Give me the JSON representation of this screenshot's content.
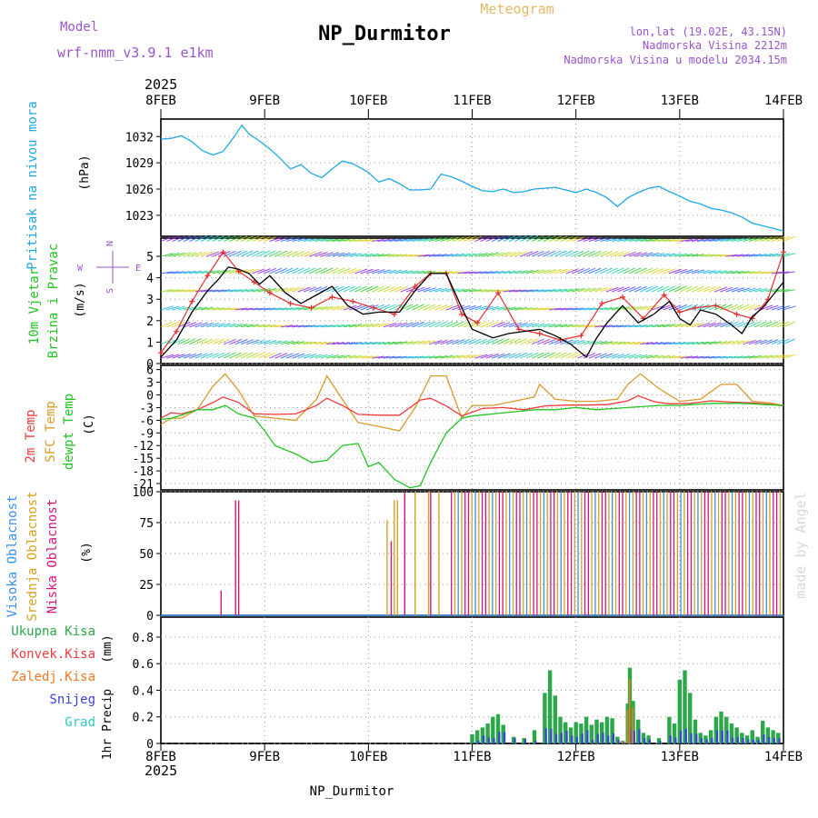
{
  "header": {
    "model_label": "Model",
    "model_name": "wrf-nmm_v3.9.1 e1km",
    "title": "NP_Durmitor",
    "subtitle": "Meteogram",
    "coords": "lon,lat (19.02E, 43.15N)",
    "elevation": "Nadmorska Visina 2212m",
    "model_elevation": "Nadmorska Visina u modelu 2034.15m",
    "year": "2025",
    "footer_station": "NP_Durmitor",
    "credit": "made by Angel"
  },
  "colors": {
    "pressure": "#1ea8e6",
    "wind_speed": "#000000",
    "wind_gust": "#e03030",
    "temp_2m": "#ee3a3a",
    "temp_sfc": "#d99a2b",
    "dewpoint": "#22c422",
    "cloud_high": "#3a8fe8",
    "cloud_mid": "#d8a020",
    "cloud_low": "#d4147a",
    "precip_total": "#2aa84a",
    "precip_conv": "#e84040",
    "precip_frz": "#f07a20",
    "precip_snow": "#3a40e0",
    "precip_grad": "#30c8c8"
  },
  "chart_data": [
    {
      "type": "line",
      "panel": "pressure",
      "ylabel": "Pritisak na nivou mora",
      "unit": "(hPa)",
      "x_ticks": [
        "8FEB",
        "9FEB",
        "10FEB",
        "11FEB",
        "12FEB",
        "13FEB",
        "14FEB"
      ],
      "ylim": [
        1020.6,
        1034.0
      ],
      "yticks": [
        1023,
        1026,
        1029,
        1032
      ],
      "series": [
        {
          "x": [
            0,
            0.1,
            0.2,
            0.3,
            0.4,
            0.5,
            0.6,
            0.72,
            0.78,
            0.85,
            0.95,
            1.05,
            1.15,
            1.25,
            1.35,
            1.45,
            1.55,
            1.65,
            1.75,
            1.85,
            2.0,
            2.1,
            2.2,
            2.3,
            2.4,
            2.5,
            2.6,
            2.7,
            2.8,
            2.9,
            3.0,
            3.1,
            3.2,
            3.3,
            3.4,
            3.5,
            3.6,
            3.7,
            3.8,
            3.9,
            4.0,
            4.1,
            4.2,
            4.3,
            4.4,
            4.5,
            4.6,
            4.7,
            4.8,
            4.9,
            5.0,
            5.1,
            5.2,
            5.3,
            5.4,
            5.5,
            5.6,
            5.7,
            5.8,
            5.9,
            6.0
          ],
          "values": [
            1031.7,
            1031.8,
            1032.1,
            1031.4,
            1030.4,
            1029.9,
            1030.3,
            1032.2,
            1033.3,
            1032.3,
            1031.5,
            1030.6,
            1029.5,
            1028.3,
            1028.8,
            1027.8,
            1027.3,
            1028.3,
            1029.2,
            1028.9,
            1027.9,
            1026.8,
            1027.2,
            1026.6,
            1025.9,
            1025.9,
            1026.0,
            1027.7,
            1027.4,
            1026.9,
            1026.3,
            1025.8,
            1025.7,
            1026.0,
            1025.6,
            1025.7,
            1026.0,
            1026.1,
            1026.2,
            1025.9,
            1025.6,
            1026.0,
            1025.6,
            1025.0,
            1024.0,
            1025.0,
            1025.6,
            1026.1,
            1026.3,
            1025.7,
            1025.2,
            1024.6,
            1024.3,
            1023.8,
            1023.6,
            1023.3,
            1022.8,
            1022.1,
            1021.8,
            1021.5,
            1021.2
          ]
        }
      ]
    },
    {
      "type": "line",
      "panel": "wind",
      "ylabel": "10m Vjetar",
      "ylabel2": "Brzina i Pravac",
      "unit": "(m/s)",
      "compass": {
        "north": "N",
        "east": "E",
        "west": "W",
        "south": "S"
      },
      "ylim": [
        0,
        5.85
      ],
      "yticks": [
        0,
        1,
        2,
        3,
        4,
        5
      ],
      "series": [
        {
          "name": "speed",
          "x": [
            0,
            0.15,
            0.3,
            0.45,
            0.55,
            0.65,
            0.75,
            0.85,
            0.95,
            1.05,
            1.2,
            1.35,
            1.5,
            1.65,
            1.8,
            1.95,
            2.1,
            2.3,
            2.45,
            2.6,
            2.75,
            2.9,
            3.0,
            3.1,
            3.2,
            3.35,
            3.5,
            3.65,
            3.8,
            3.95,
            4.1,
            4.2,
            4.3,
            4.45,
            4.6,
            4.75,
            4.9,
            5.0,
            5.1,
            5.2,
            5.35,
            5.5,
            5.6,
            5.7,
            5.8,
            5.9,
            6.0
          ],
          "values": [
            0.3,
            1.1,
            2.4,
            3.4,
            3.9,
            4.5,
            4.4,
            4.2,
            3.7,
            4.1,
            3.3,
            2.8,
            3.2,
            3.6,
            2.7,
            2.3,
            2.4,
            2.4,
            3.4,
            4.2,
            4.2,
            2.6,
            1.6,
            1.4,
            1.2,
            1.4,
            1.5,
            1.6,
            1.3,
            0.9,
            0.3,
            1.2,
            1.9,
            2.7,
            1.9,
            2.3,
            2.9,
            2.1,
            1.8,
            2.5,
            2.3,
            1.8,
            1.4,
            2.2,
            2.6,
            3.2,
            3.8
          ]
        },
        {
          "name": "gust",
          "x": [
            0,
            0.15,
            0.3,
            0.45,
            0.6,
            0.75,
            0.9,
            1.05,
            1.25,
            1.45,
            1.65,
            1.85,
            2.05,
            2.25,
            2.45,
            2.6,
            2.75,
            2.9,
            3.05,
            3.25,
            3.45,
            3.65,
            3.85,
            4.05,
            4.25,
            4.45,
            4.65,
            4.85,
            5.0,
            5.15,
            5.35,
            5.55,
            5.7,
            5.85,
            6.0
          ],
          "values": [
            0.5,
            1.5,
            2.9,
            4.1,
            5.2,
            4.3,
            3.8,
            3.3,
            2.8,
            2.6,
            3.1,
            2.9,
            2.6,
            2.3,
            3.6,
            4.2,
            4.2,
            2.3,
            1.9,
            3.3,
            1.6,
            1.4,
            1.1,
            1.3,
            2.8,
            3.1,
            2.1,
            3.2,
            2.4,
            2.6,
            2.7,
            2.3,
            2.1,
            3.0,
            5.2
          ]
        }
      ]
    },
    {
      "type": "line",
      "panel": "temperature",
      "ylabels": [
        "2m Temp",
        "SFC Temp",
        "dewpt Temp"
      ],
      "unit": "(C)",
      "ylim": [
        -22.5,
        7.0
      ],
      "yticks": [
        -21,
        -18,
        -15,
        -12,
        -9,
        -6,
        -3,
        0,
        3,
        6
      ],
      "series": [
        {
          "name": "2m Temp",
          "x": [
            0,
            0.1,
            0.2,
            0.35,
            0.5,
            0.6,
            0.75,
            0.9,
            1.1,
            1.3,
            1.5,
            1.6,
            1.75,
            1.9,
            2.1,
            2.3,
            2.5,
            2.6,
            2.75,
            2.9,
            3.1,
            3.3,
            3.5,
            3.7,
            3.9,
            4.1,
            4.3,
            4.5,
            4.6,
            4.75,
            4.9,
            5.1,
            5.3,
            5.5,
            5.7,
            5.9,
            6.0
          ],
          "values": [
            -5.5,
            -4.2,
            -4.5,
            -3.5,
            -1.8,
            -0.5,
            -1.8,
            -4.5,
            -4.6,
            -4.5,
            -2.5,
            -0.8,
            -2.5,
            -4.6,
            -4.8,
            -4.8,
            -1.2,
            -0.8,
            -2.6,
            -5.0,
            -3.2,
            -3.0,
            -3.5,
            -2.6,
            -2.4,
            -2.4,
            -2.3,
            -1.4,
            -0.2,
            -1.6,
            -2.1,
            -2.0,
            -1.4,
            -1.7,
            -1.9,
            -2.3,
            -2.6
          ]
        },
        {
          "name": "SFC Temp",
          "x": [
            0,
            0.1,
            0.2,
            0.35,
            0.5,
            0.62,
            0.75,
            0.9,
            1.1,
            1.3,
            1.5,
            1.6,
            1.72,
            1.9,
            2.1,
            2.3,
            2.45,
            2.6,
            2.75,
            2.9,
            3.0,
            3.2,
            3.4,
            3.6,
            3.65,
            3.8,
            4.0,
            4.2,
            4.4,
            4.5,
            4.62,
            4.8,
            5.0,
            5.2,
            5.4,
            5.55,
            5.7,
            5.9,
            6.0
          ],
          "values": [
            -7.0,
            -5.5,
            -5.5,
            -3.5,
            2.0,
            5.0,
            1.0,
            -5.0,
            -5.5,
            -6.0,
            -1.0,
            4.5,
            0.0,
            -6.5,
            -7.5,
            -8.5,
            -3.0,
            4.5,
            4.5,
            -5.5,
            -2.5,
            -2.5,
            -1.5,
            -0.5,
            2.5,
            -1.0,
            -1.5,
            -1.5,
            -1.0,
            2.5,
            5.0,
            1.5,
            -1.5,
            -1.0,
            2.5,
            2.5,
            -1.5,
            -2.0,
            -2.5
          ]
        },
        {
          "name": "dewpt Temp",
          "x": [
            0,
            0.1,
            0.2,
            0.35,
            0.5,
            0.62,
            0.75,
            0.9,
            1.0,
            1.1,
            1.3,
            1.45,
            1.6,
            1.75,
            1.9,
            2.0,
            2.1,
            2.25,
            2.4,
            2.5,
            2.6,
            2.75,
            2.9,
            3.0,
            3.2,
            3.4,
            3.6,
            3.8,
            4.0,
            4.2,
            4.5,
            4.8,
            5.0,
            5.3,
            5.6,
            6.0
          ],
          "values": [
            -5.8,
            -5.5,
            -4.8,
            -3.5,
            -3.5,
            -2.5,
            -4.5,
            -5.5,
            -8.5,
            -12.0,
            -14.0,
            -16.0,
            -15.5,
            -12.0,
            -11.5,
            -17.0,
            -16.0,
            -20.0,
            -22.0,
            -21.5,
            -16.0,
            -9.0,
            -5.5,
            -5.0,
            -4.5,
            -4.0,
            -3.5,
            -3.5,
            -3.0,
            -3.5,
            -3.0,
            -2.5,
            -2.5,
            -2.0,
            -2.0,
            -2.5
          ]
        }
      ]
    },
    {
      "type": "bar",
      "panel": "clouds",
      "ylabels": [
        "Visoka Oblacnost",
        "Srednja Oblacnost",
        "Niska Oblacnost"
      ],
      "unit": "(%)",
      "ylim": [
        0,
        100
      ],
      "yticks": [
        0,
        25,
        50,
        75,
        100
      ],
      "low_spikes": [
        {
          "x": 0.58,
          "v": 20
        },
        {
          "x": 0.72,
          "v": 93
        },
        {
          "x": 0.75,
          "v": 93
        },
        {
          "x": 2.22,
          "v": 60
        },
        {
          "x": 2.35,
          "v": 100
        },
        {
          "x": 2.6,
          "v": 100
        }
      ],
      "mid_spikes": [
        {
          "x": 2.18,
          "v": 77
        },
        {
          "x": 2.25,
          "v": 93
        },
        {
          "x": 2.28,
          "v": 93
        },
        {
          "x": 2.45,
          "v": 100
        },
        {
          "x": 2.58,
          "v": 100
        },
        {
          "x": 2.68,
          "v": 100
        }
      ],
      "dense_from": 2.8,
      "dense_to": 6.0,
      "dense_value": 100
    },
    {
      "type": "bar",
      "panel": "precip",
      "legend": [
        "Ukupna Kisa",
        "Konvek.Kisa",
        "Zaledj.Kisa",
        "Snijeg",
        "Grad"
      ],
      "ylabel": "1hr Precip",
      "unit": "(mm)",
      "ylim": [
        0,
        0.95
      ],
      "yticks": [
        0,
        0.2,
        0.4,
        0.6,
        0.8
      ],
      "x": [
        3.0,
        3.05,
        3.1,
        3.15,
        3.2,
        3.25,
        3.3,
        3.4,
        3.5,
        3.6,
        3.7,
        3.75,
        3.8,
        3.85,
        3.9,
        3.95,
        4.0,
        4.05,
        4.1,
        4.15,
        4.2,
        4.25,
        4.3,
        4.35,
        4.4,
        4.45,
        4.5,
        4.52,
        4.55,
        4.6,
        4.65,
        4.7,
        4.8,
        4.9,
        4.95,
        5.0,
        5.05,
        5.1,
        5.15,
        5.2,
        5.25,
        5.3,
        5.35,
        5.4,
        5.45,
        5.5,
        5.55,
        5.6,
        5.65,
        5.7,
        5.75,
        5.8,
        5.85,
        5.9,
        5.95
      ],
      "values": [
        0.07,
        0.1,
        0.12,
        0.15,
        0.2,
        0.22,
        0.14,
        0.05,
        0.04,
        0.1,
        0.38,
        0.55,
        0.36,
        0.2,
        0.16,
        0.12,
        0.16,
        0.15,
        0.2,
        0.14,
        0.18,
        0.16,
        0.2,
        0.19,
        0.05,
        0.02,
        0.3,
        0.57,
        0.32,
        0.18,
        0.08,
        0.06,
        0.04,
        0.2,
        0.15,
        0.48,
        0.55,
        0.38,
        0.18,
        0.08,
        0.06,
        0.1,
        0.2,
        0.24,
        0.2,
        0.15,
        0.12,
        0.08,
        0.06,
        0.1,
        0.05,
        0.17,
        0.12,
        0.1,
        0.08
      ],
      "snow_frac": [
        0.1,
        0.2,
        0.5,
        0.3,
        0.2,
        0.4,
        0.6,
        0.8,
        0.8,
        0.2,
        0.3,
        0.2,
        0.2,
        0.4,
        0.6,
        0.5,
        0.3,
        0.5,
        0.5,
        0.2,
        0.4,
        0.5,
        0.3,
        0.4,
        0.5,
        0.5,
        0.5,
        0.2,
        0.3,
        0.6,
        0.5,
        0.5,
        0.5,
        0.3,
        0.3,
        0.2,
        0.2,
        0.2,
        0.4,
        0.5,
        0.5,
        0.4,
        0.5,
        0.4,
        0.5,
        0.3,
        0.4,
        0.5,
        0.5,
        0.3,
        0.5,
        0.4,
        0.4,
        0.4,
        0.5
      ]
    }
  ]
}
